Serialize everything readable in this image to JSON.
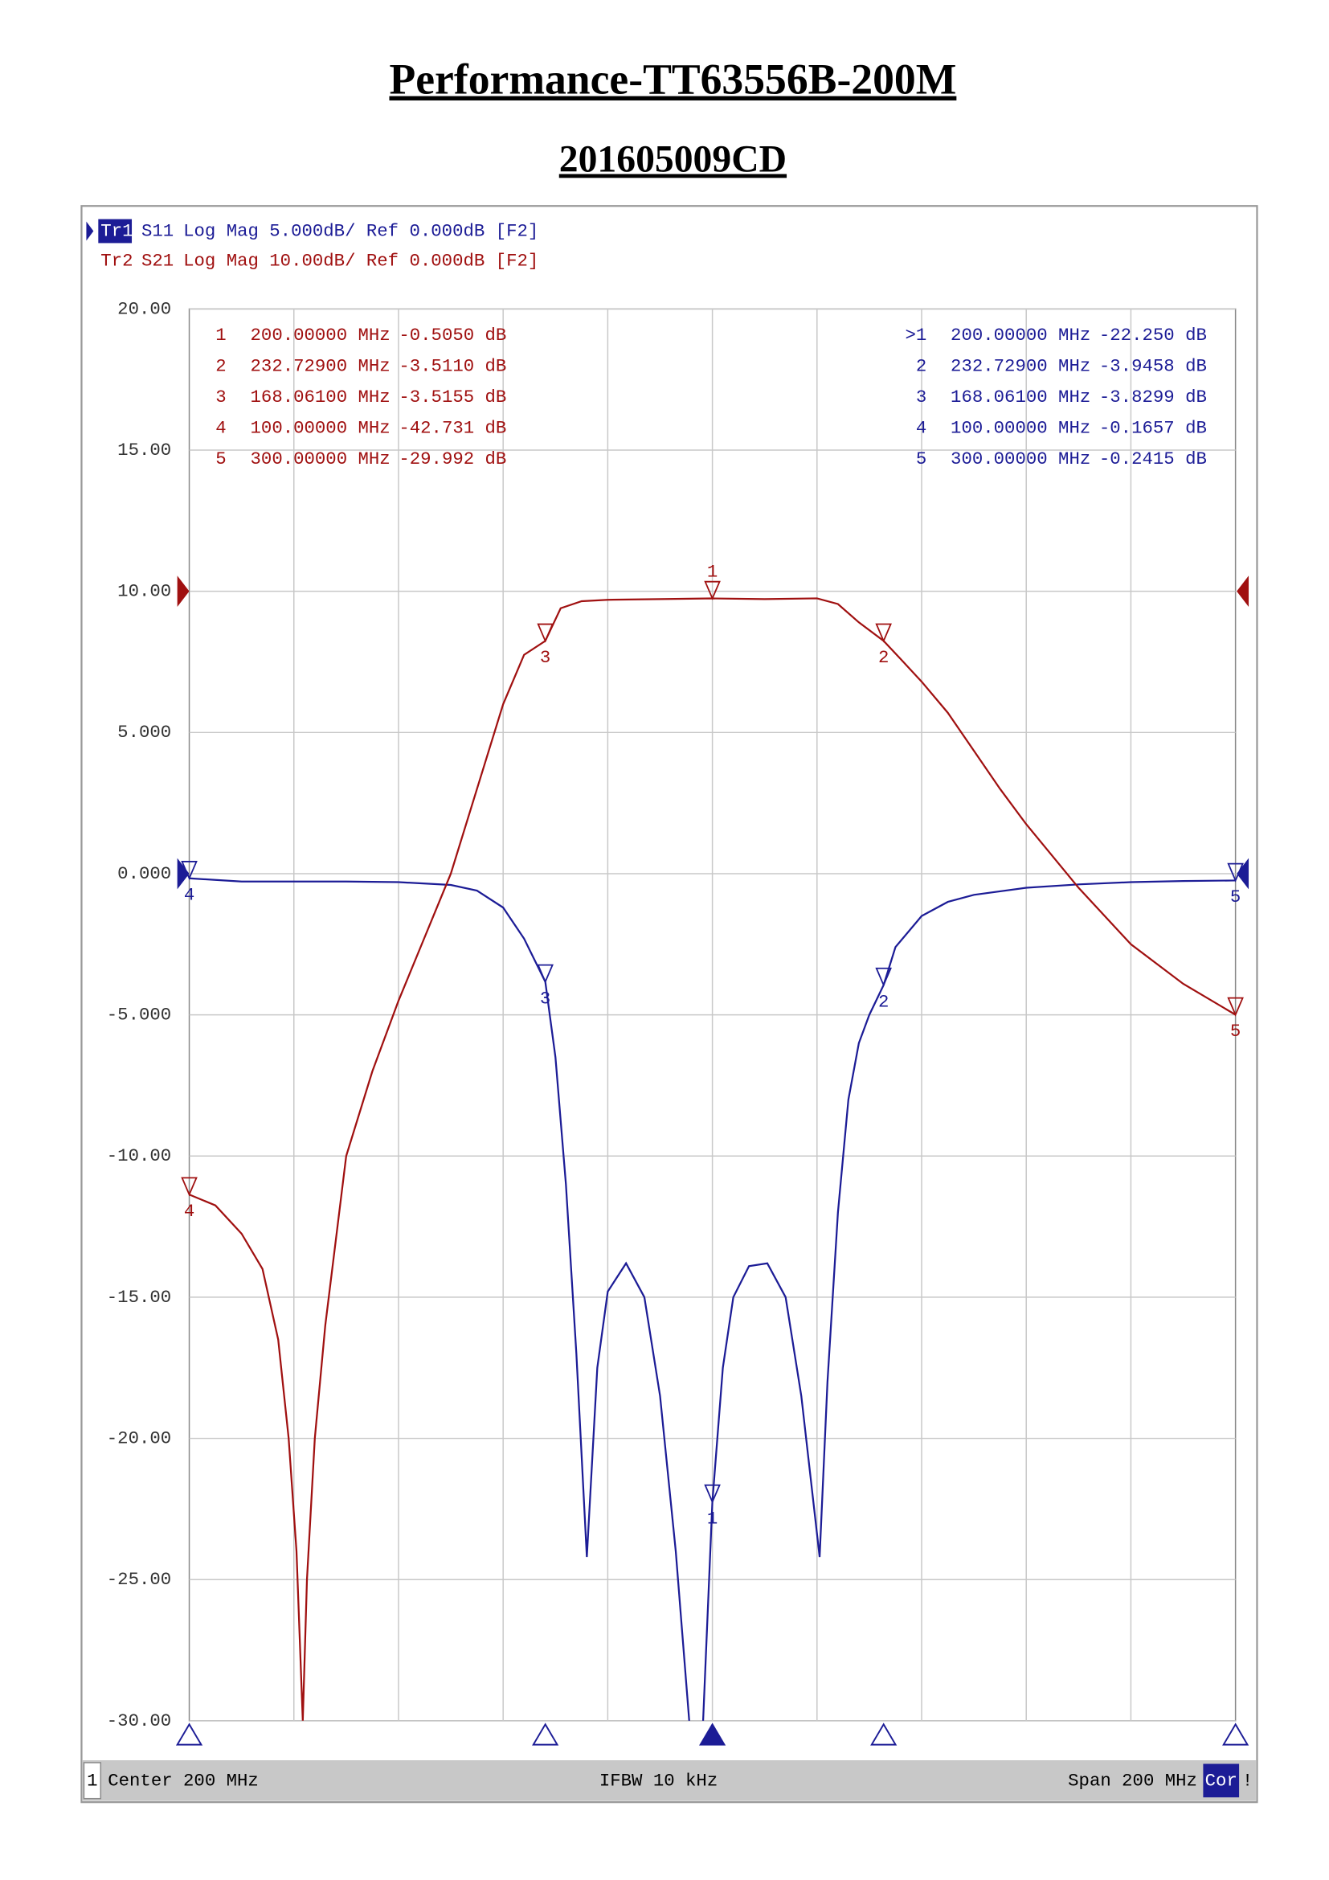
{
  "title": "Performance-TT63556B-200M",
  "subtitle": "201605009CD",
  "chart_data": {
    "type": "line",
    "xlim": [
      100,
      300
    ],
    "ylim": [
      -30,
      20
    ],
    "y2lim": [
      -80,
      20
    ],
    "grid": true,
    "yticks": [
      {
        "value": 20,
        "label": "20.00"
      },
      {
        "value": 15,
        "label": "15.00"
      },
      {
        "value": 10,
        "label": "10.00"
      },
      {
        "value": 5,
        "label": "5.000"
      },
      {
        "value": 0,
        "label": "0.000"
      },
      {
        "value": -5,
        "label": "-5.000"
      },
      {
        "value": -10,
        "label": "-10.00"
      },
      {
        "value": -15,
        "label": "-15.00"
      },
      {
        "value": -20,
        "label": "-20.00"
      },
      {
        "value": -25,
        "label": "-25.00"
      },
      {
        "value": -30,
        "label": "-30.00"
      }
    ],
    "series": [
      {
        "trace": "Tr1",
        "name": "S11",
        "format": "Log Mag 5.000dB/ Ref 0.000dB [F2]",
        "ref": 0,
        "color": "#1c1c96",
        "axis": "y",
        "active": true,
        "x": [
          100,
          110,
          120,
          130,
          140,
          150,
          155,
          160,
          164,
          168.061,
          170,
          172,
          174,
          176,
          178,
          180,
          183.5,
          187,
          190,
          193,
          196,
          198,
          200,
          202,
          204,
          207,
          210.5,
          214,
          217,
          220.5,
          222,
          224,
          226,
          228,
          230,
          232.729,
          235,
          240,
          245,
          250,
          260,
          270,
          280,
          290,
          300
        ],
        "values": [
          -0.1657,
          -0.28,
          -0.28,
          -0.28,
          -0.3,
          -0.4,
          -0.6,
          -1.2,
          -2.3,
          -3.8299,
          -6.5,
          -11,
          -17,
          -24.2,
          -17.5,
          -14.8,
          -13.8,
          -15,
          -18.5,
          -24,
          -31,
          -31,
          -22.25,
          -17.5,
          -15,
          -13.9,
          -13.8,
          -15,
          -18.5,
          -24.2,
          -18,
          -12,
          -8,
          -6,
          -5,
          -3.9458,
          -2.6,
          -1.5,
          -1,
          -0.75,
          -0.5,
          -0.38,
          -0.3,
          -0.26,
          -0.2415
        ],
        "markers": [
          {
            "id": "1",
            "table_id": ">1",
            "x": 200,
            "x_label": "200.00000 MHz",
            "y": -22.25,
            "y_label": "-22.250 dB"
          },
          {
            "id": "2",
            "x": 232.729,
            "x_label": "232.72900 MHz",
            "y": -3.9458,
            "y_label": "-3.9458 dB"
          },
          {
            "id": "3",
            "x": 168.061,
            "x_label": "168.06100 MHz",
            "y": -3.8299,
            "y_label": "-3.8299 dB"
          },
          {
            "id": "4",
            "x": 100,
            "x_label": "100.00000 MHz",
            "y": -0.1657,
            "y_label": "-0.1657 dB"
          },
          {
            "id": "5",
            "x": 300,
            "x_label": "300.00000 MHz",
            "y": -0.2415,
            "y_label": "-0.2415 dB"
          }
        ]
      },
      {
        "trace": "Tr2",
        "name": "S21",
        "format": "Log Mag 10.00dB/ Ref 0.000dB [F2]",
        "ref": 0,
        "color": "#a01010",
        "axis": "y2",
        "x": [
          100,
          105,
          110,
          114,
          117,
          119,
          120.5,
          121.7,
          122.5,
          124,
          126,
          130,
          135,
          140,
          145,
          150,
          155,
          160,
          164,
          168.061,
          171,
          175,
          180,
          190,
          200,
          210,
          220,
          224,
          228,
          232.729,
          236,
          240,
          245,
          250,
          255,
          260,
          270,
          280,
          290,
          300
        ],
        "values": [
          -42.731,
          -43.5,
          -45.5,
          -48,
          -53,
          -60,
          -68,
          -80,
          -70,
          -60,
          -52,
          -40,
          -34,
          -29,
          -24.5,
          -20,
          -14,
          -8,
          -4.5,
          -3.5155,
          -1.2,
          -0.7,
          -0.6,
          -0.55,
          -0.505,
          -0.55,
          -0.5,
          -0.9,
          -2.2,
          -3.511,
          -4.8,
          -6.4,
          -8.6,
          -11.3,
          -14,
          -16.5,
          -21,
          -25,
          -27.8,
          -29.992
        ],
        "markers": [
          {
            "id": "1",
            "x": 200,
            "x_label": "200.00000 MHz",
            "y": -0.505,
            "y_label": "-0.5050 dB"
          },
          {
            "id": "2",
            "x": 232.729,
            "x_label": "232.72900 MHz",
            "y": -3.511,
            "y_label": "-3.5110 dB"
          },
          {
            "id": "3",
            "x": 168.061,
            "x_label": "168.06100 MHz",
            "y": -3.5155,
            "y_label": "-3.5155 dB"
          },
          {
            "id": "4",
            "x": 100,
            "x_label": "100.00000 MHz",
            "y": -42.731,
            "y_label": "-42.731 dB"
          },
          {
            "id": "5",
            "x": 300,
            "x_label": "300.00000 MHz",
            "y": -29.992,
            "y_label": "-29.992 dB"
          }
        ]
      }
    ],
    "footer": {
      "channel": "1",
      "center": "Center 200 MHz",
      "ifbw": "IFBW 10 kHz",
      "span": "Span 200 MHz",
      "cor": "Cor",
      "status": "!"
    }
  }
}
